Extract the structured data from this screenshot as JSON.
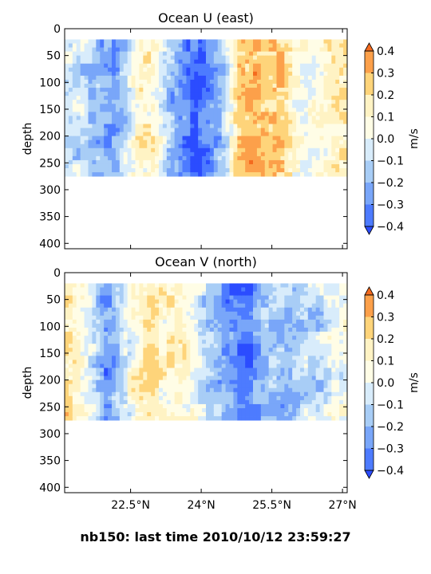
{
  "footer": "nb150: last time 2010/10/12 23:59:27",
  "chart_data": [
    {
      "type": "heatmap",
      "title": "Ocean U (east)",
      "xlabel": "",
      "ylabel": "depth",
      "x_range_deg_north": [
        21.1,
        27.1
      ],
      "ylim": [
        410,
        0
      ],
      "y_inverted": true,
      "yticks": [
        0,
        50,
        100,
        150,
        200,
        250,
        300,
        350,
        400
      ],
      "xticks": [
        22.5,
        24.0,
        25.5,
        27.0
      ],
      "xtick_labels": [],
      "data_depth_range": [
        20,
        275
      ],
      "colorbar": {
        "label": "m/s",
        "range": [
          -0.4,
          0.4
        ],
        "extend": "both",
        "ticks": [
          "0.4",
          "0.3",
          "0.2",
          "0.1",
          "0.0",
          "−0.1",
          "−0.2",
          "−0.3",
          "−0.4"
        ]
      },
      "u_profile_lat": [
        21.1,
        21.5,
        21.8,
        22.1,
        22.4,
        22.7,
        23.0,
        23.3,
        23.6,
        23.9,
        24.2,
        24.5,
        24.8,
        25.1,
        25.4,
        25.7,
        26.0,
        26.3,
        26.6,
        27.0
      ],
      "u_profile_values": [
        -0.05,
        -0.1,
        -0.2,
        -0.25,
        -0.1,
        0.15,
        0.1,
        -0.15,
        -0.3,
        -0.4,
        -0.3,
        -0.1,
        0.25,
        0.3,
        0.25,
        0.3,
        0.08,
        0.02,
        0.08,
        0.15
      ]
    },
    {
      "type": "heatmap",
      "title": "Ocean V (north)",
      "xlabel": "",
      "ylabel": "depth",
      "x_range_deg_north": [
        21.1,
        27.1
      ],
      "ylim": [
        410,
        0
      ],
      "y_inverted": true,
      "yticks": [
        0,
        50,
        100,
        150,
        200,
        250,
        300,
        350,
        400
      ],
      "xticks": [
        22.5,
        24.0,
        25.5,
        27.0
      ],
      "xtick_labels": [
        "22.5°N",
        "24°N",
        "25.5°N",
        "27°N"
      ],
      "data_depth_range": [
        20,
        275
      ],
      "colorbar": {
        "label": "m/s",
        "range": [
          -0.4,
          0.4
        ],
        "extend": "both",
        "ticks": [
          "0.4",
          "0.3",
          "0.2",
          "0.1",
          "0.0",
          "−0.1",
          "−0.2",
          "−0.3",
          "−0.4"
        ]
      },
      "v_profile_lat": [
        21.1,
        21.4,
        21.7,
        22.0,
        22.3,
        22.6,
        22.9,
        23.2,
        23.5,
        23.8,
        24.1,
        24.4,
        24.7,
        25.0,
        25.3,
        25.6,
        25.9,
        26.2,
        26.5,
        26.8,
        27.1
      ],
      "v_profile_values": [
        0.2,
        0.1,
        -0.05,
        -0.3,
        -0.1,
        0.1,
        0.2,
        0.1,
        0.15,
        0.05,
        -0.1,
        -0.2,
        -0.3,
        -0.35,
        -0.2,
        -0.15,
        -0.2,
        -0.1,
        -0.1,
        0.0,
        0.05
      ]
    }
  ]
}
